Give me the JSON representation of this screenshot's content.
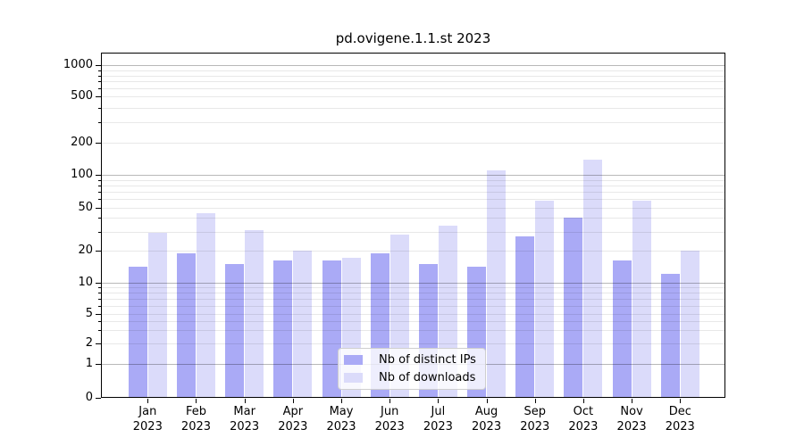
{
  "chart_data": {
    "type": "bar",
    "title": "pd.ovigene.1.1.st 2023",
    "categories": [
      "Jan 2023",
      "Feb 2023",
      "Mar 2023",
      "Apr 2023",
      "May 2023",
      "Jun 2023",
      "Jul 2023",
      "Aug 2023",
      "Sep 2023",
      "Oct 2023",
      "Nov 2023",
      "Dec 2023"
    ],
    "series": [
      {
        "name": "Nb of distinct IPs",
        "color": "#aaaaf6",
        "values": [
          14,
          19,
          15,
          16,
          16,
          19,
          15,
          14,
          27,
          40,
          16,
          12
        ]
      },
      {
        "name": "Nb of downloads",
        "color": "#dbdbfa",
        "values": [
          29,
          44,
          31,
          20,
          17,
          28,
          34,
          110,
          58,
          140,
          58,
          20
        ]
      }
    ],
    "ylabel": "",
    "xlabel": "",
    "yscale": "symlog",
    "ylim": [
      0,
      1300
    ],
    "y_ticks": [
      0,
      1,
      2,
      5,
      10,
      20,
      50,
      100,
      200,
      500,
      1000
    ],
    "y_minor_gridlines": [
      2,
      3,
      4,
      5,
      6,
      7,
      8,
      9,
      20,
      30,
      40,
      50,
      60,
      70,
      80,
      90,
      200,
      300,
      400,
      500,
      600,
      700,
      800,
      900
    ],
    "y_major_gridlines": [
      1,
      10,
      100,
      1000
    ],
    "grid": true,
    "legend_position": "inside-bottom-center",
    "bar_edge_color": "none",
    "background": "#ffffff"
  }
}
